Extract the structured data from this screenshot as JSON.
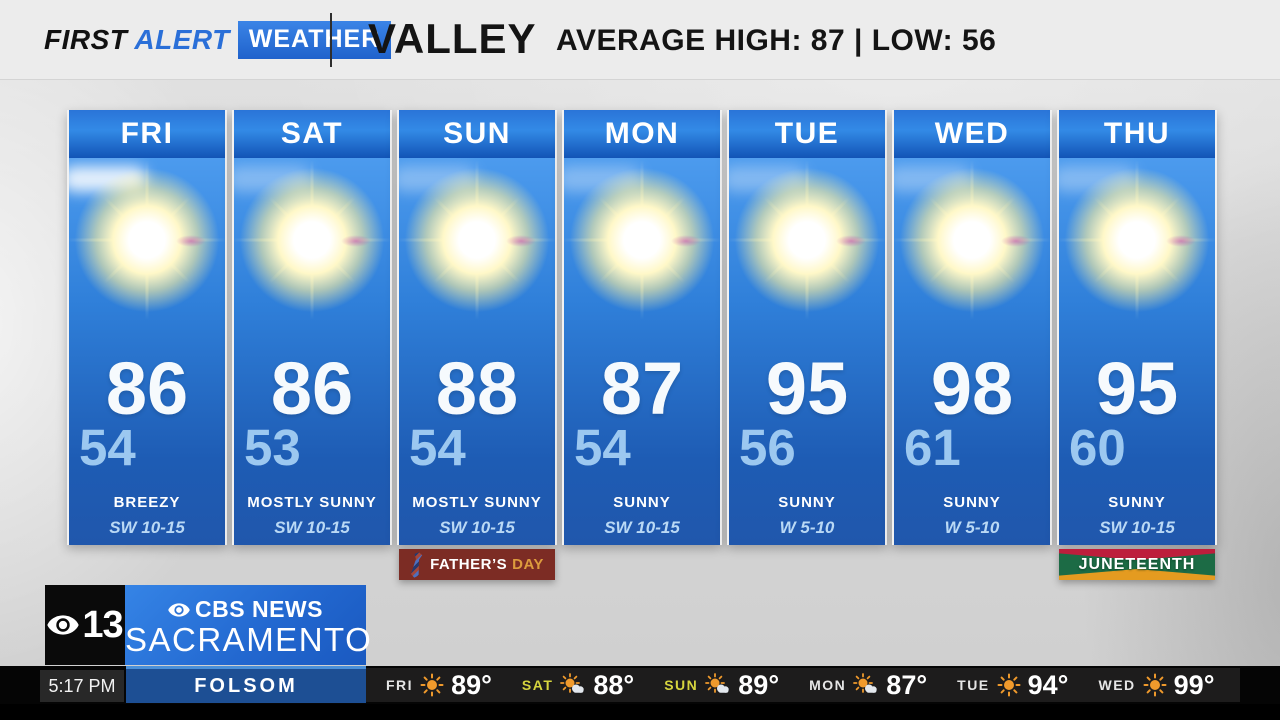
{
  "header": {
    "brand": {
      "first": "FIRST",
      "alert": "ALERT",
      "weather": "WEATHER"
    },
    "region": "VALLEY",
    "stats": "AVERAGE HIGH: 87 | LOW: 56"
  },
  "forecast": {
    "days": [
      {
        "label": "FRI",
        "high": "86",
        "low": "54",
        "condition": "BREEZY",
        "wind": "SW 10-15",
        "icon": "sunny",
        "cloud": "strong"
      },
      {
        "label": "SAT",
        "high": "86",
        "low": "53",
        "condition": "MOSTLY SUNNY",
        "wind": "SW 10-15",
        "icon": "sunny",
        "cloud": "faint"
      },
      {
        "label": "SUN",
        "high": "88",
        "low": "54",
        "condition": "MOSTLY SUNNY",
        "wind": "SW 10-15",
        "icon": "sunny",
        "cloud": "faint",
        "badge": {
          "type": "fathers-day",
          "text": "FATHER’S",
          "accent": "DAY"
        }
      },
      {
        "label": "MON",
        "high": "87",
        "low": "54",
        "condition": "SUNNY",
        "wind": "SW 10-15",
        "icon": "sunny",
        "cloud": "faint"
      },
      {
        "label": "TUE",
        "high": "95",
        "low": "56",
        "condition": "SUNNY",
        "wind": "W 5-10",
        "icon": "sunny",
        "cloud": "faint"
      },
      {
        "label": "WED",
        "high": "98",
        "low": "61",
        "condition": "SUNNY",
        "wind": "W 5-10",
        "icon": "sunny",
        "cloud": "faint"
      },
      {
        "label": "THU",
        "high": "95",
        "low": "60",
        "condition": "SUNNY",
        "wind": "SW 10-15",
        "icon": "sunny",
        "cloud": "faint",
        "badge": {
          "type": "juneteenth",
          "text": "JUNETEENTH",
          "accent": ""
        }
      }
    ]
  },
  "station": {
    "channel": "13",
    "network": "CBS NEWS",
    "city": "SACRAMENTO",
    "eye_icon": "cbs-eye-icon"
  },
  "lower_bar": {
    "time": "5:17 PM",
    "location": "FOLSOM",
    "ticker": [
      {
        "day": "FRI",
        "temp": "89°",
        "icon": "sun",
        "highlight": false
      },
      {
        "day": "SAT",
        "temp": "88°",
        "icon": "sun-cloud",
        "highlight": true
      },
      {
        "day": "SUN",
        "temp": "89°",
        "icon": "sun-cloud",
        "highlight": true
      },
      {
        "day": "MON",
        "temp": "87°",
        "icon": "sun-cloud",
        "highlight": false
      },
      {
        "day": "TUE",
        "temp": "94°",
        "icon": "sun",
        "highlight": false
      },
      {
        "day": "WED",
        "temp": "99°",
        "icon": "sun",
        "highlight": false
      }
    ]
  },
  "colors": {
    "brand_blue": "#2a6fd8",
    "column_header_blue": "#1254b6",
    "sky_blue": "#2f7fd9",
    "low_temp_blue": "#9cc8f0",
    "fathers_day_maroon": "#7c2c24",
    "fathers_day_gold": "#dd9c3d",
    "juneteenth_green": "#1c6b45",
    "juneteenth_red": "#bd1e3c",
    "juneteenth_amber": "#e49b20",
    "folsom_bar_blue": "#1d4f94",
    "ticker_weekend_yellow": "#d6d53e",
    "ticker_sun_orange": "#f09a2c"
  }
}
